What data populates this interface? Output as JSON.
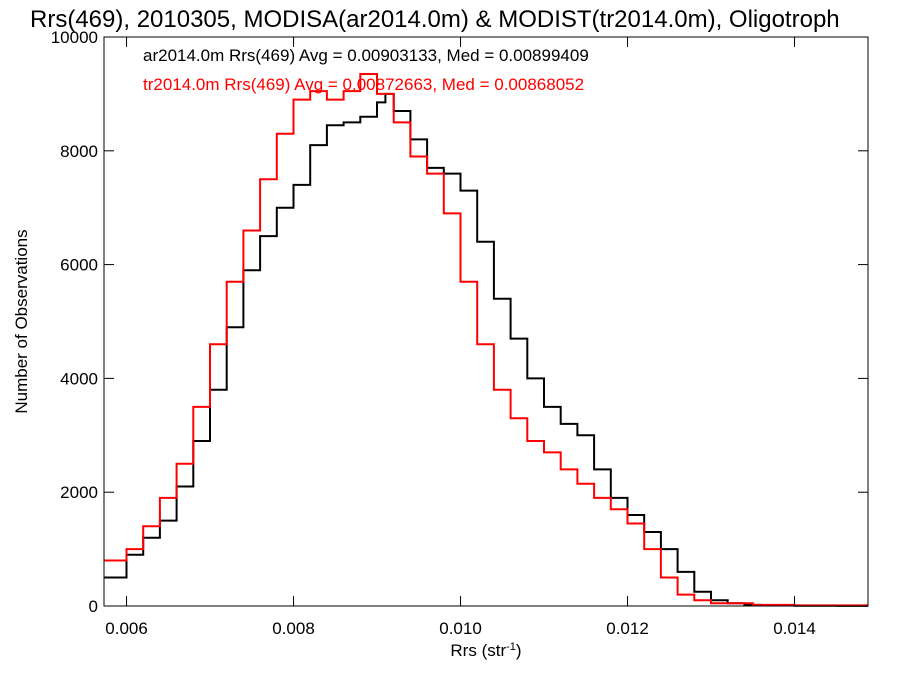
{
  "chart_data": {
    "type": "line",
    "title": "Rrs(469), 2010305, MODISA(ar2014.0m) & MODIST(tr2014.0m), Oligotroph",
    "xlabel": "Rrs (str",
    "xlabel_sup": "-1",
    "xlabel_tail": ")",
    "ylabel": "Number of Observations",
    "xlim": [
      0.00573,
      0.01488
    ],
    "ylim": [
      0,
      10000
    ],
    "xticks": [
      0.006,
      0.008,
      0.01,
      0.012,
      0.014
    ],
    "xtick_labels": [
      "0.006",
      "0.008",
      "0.010",
      "0.012",
      "0.014"
    ],
    "yticks": [
      0,
      2000,
      4000,
      6000,
      8000,
      10000
    ],
    "ytick_labels": [
      "0",
      "2000",
      "4000",
      "6000",
      "8000",
      "10000"
    ],
    "grid": false,
    "step": true,
    "series": [
      {
        "name": "ar2014.0m",
        "color": "#000000",
        "annotation": "ar2014.0m Rrs(469) Avg = 0.00903133, Med = 0.00899409",
        "x": [
          0.00573,
          0.006,
          0.0062,
          0.0064,
          0.0066,
          0.0068,
          0.007,
          0.0072,
          0.0074,
          0.0076,
          0.0078,
          0.008,
          0.0082,
          0.0084,
          0.0086,
          0.0088,
          0.009,
          0.0091,
          0.0092,
          0.0094,
          0.0096,
          0.0098,
          0.01,
          0.0102,
          0.0104,
          0.0106,
          0.0108,
          0.011,
          0.0112,
          0.0114,
          0.0116,
          0.0118,
          0.012,
          0.0122,
          0.0124,
          0.0126,
          0.0128,
          0.013,
          0.0132,
          0.0134,
          0.0136,
          0.014,
          0.0145,
          0.01488
        ],
        "y": [
          500,
          900,
          1200,
          1500,
          2100,
          2900,
          3800,
          4900,
          5900,
          6500,
          7000,
          7400,
          8100,
          8450,
          8500,
          8600,
          8850,
          9000,
          8700,
          8200,
          7700,
          7600,
          7300,
          6400,
          5400,
          4700,
          4000,
          3500,
          3200,
          3000,
          2400,
          1900,
          1600,
          1300,
          1000,
          600,
          250,
          100,
          50,
          20,
          10,
          5,
          2,
          0
        ]
      },
      {
        "name": "tr2014.0m",
        "color": "#ff0000",
        "annotation": "tr2014.0m Rrs(469) Avg = 0.00872663, Med = 0.00868052",
        "x": [
          0.00573,
          0.006,
          0.0062,
          0.0064,
          0.0066,
          0.0068,
          0.007,
          0.0072,
          0.0074,
          0.0076,
          0.0078,
          0.008,
          0.0082,
          0.0084,
          0.0086,
          0.0088,
          0.009,
          0.0092,
          0.0094,
          0.0096,
          0.0098,
          0.01,
          0.0102,
          0.0104,
          0.0106,
          0.0108,
          0.011,
          0.0112,
          0.0114,
          0.0116,
          0.0118,
          0.012,
          0.0122,
          0.0124,
          0.0126,
          0.0128,
          0.013,
          0.0135,
          0.014,
          0.01488
        ],
        "y": [
          800,
          1000,
          1400,
          1900,
          2500,
          3500,
          4600,
          5700,
          6600,
          7500,
          8300,
          8900,
          9050,
          8900,
          9050,
          9350,
          9000,
          8500,
          7900,
          7600,
          6900,
          5700,
          4600,
          3800,
          3300,
          2900,
          2700,
          2400,
          2150,
          1900,
          1700,
          1450,
          1000,
          500,
          200,
          100,
          50,
          20,
          10,
          0
        ]
      }
    ]
  }
}
